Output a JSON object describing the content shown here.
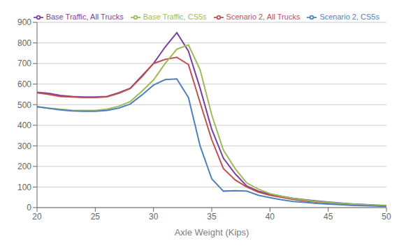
{
  "chart_data": {
    "type": "line",
    "xlabel": "Axle Weight  (Kips)",
    "x": [
      20,
      21,
      22,
      23,
      24,
      25,
      26,
      27,
      28,
      29,
      30,
      31,
      32,
      33,
      34,
      35,
      36,
      37,
      38,
      39,
      40,
      41,
      42,
      43,
      44,
      45,
      46,
      47,
      48,
      49,
      50
    ],
    "series": [
      {
        "name": "Base Traffic, All Trucks",
        "color": "#7B3FA0",
        "values": [
          560,
          555,
          545,
          540,
          537,
          537,
          540,
          558,
          580,
          640,
          700,
          780,
          850,
          760,
          580,
          380,
          240,
          165,
          105,
          80,
          65,
          55,
          45,
          38,
          32,
          27,
          22,
          18,
          15,
          12,
          10
        ]
      },
      {
        "name": "Scenario 2, All Trucks",
        "color": "#C0504D",
        "values": [
          558,
          550,
          540,
          537,
          535,
          535,
          538,
          555,
          578,
          635,
          700,
          720,
          730,
          695,
          510,
          330,
          190,
          135,
          100,
          75,
          60,
          50,
          40,
          32,
          27,
          22,
          18,
          15,
          12,
          10,
          8
        ]
      },
      {
        "name": "Base Traffic, CS5s",
        "color": "#9BBB59",
        "values": [
          490,
          483,
          478,
          473,
          472,
          472,
          478,
          492,
          515,
          565,
          620,
          700,
          770,
          790,
          670,
          450,
          280,
          190,
          120,
          90,
          68,
          55,
          44,
          36,
          30,
          25,
          20,
          17,
          14,
          11,
          9
        ]
      },
      {
        "name": "Scenario 2, CS5s",
        "color": "#4F81BD",
        "values": [
          490,
          482,
          475,
          470,
          468,
          468,
          472,
          483,
          503,
          547,
          595,
          622,
          625,
          535,
          300,
          140,
          80,
          82,
          80,
          60,
          48,
          38,
          30,
          25,
          20,
          17,
          14,
          11,
          9,
          8,
          6
        ]
      }
    ],
    "xlim": [
      20,
      50
    ],
    "ylim": [
      0,
      900
    ],
    "xticks": [
      20,
      25,
      30,
      35,
      40,
      45,
      50
    ],
    "yticks": [
      0,
      100,
      200,
      300,
      400,
      500,
      600,
      700,
      800,
      900
    ],
    "grid": true,
    "legend": "upper right"
  }
}
